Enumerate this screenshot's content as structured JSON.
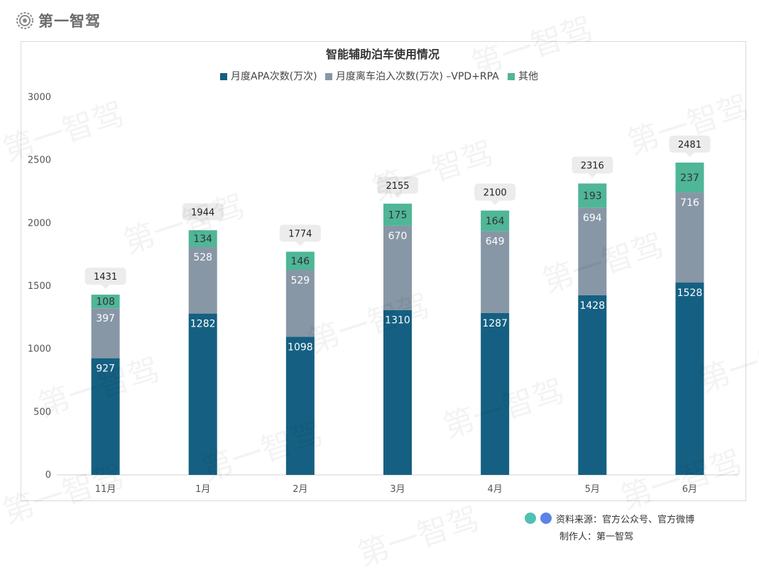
{
  "brand": {
    "name": "第一智驾",
    "icon": "gear-icon"
  },
  "chart_data": {
    "type": "bar",
    "stacked": true,
    "title": "智能辅助泊车使用情况",
    "categories": [
      "11月",
      "1月",
      "2月",
      "3月",
      "4月",
      "5月",
      "6月"
    ],
    "series": [
      {
        "name": "月度APA次数(万次)",
        "color": "#156082",
        "values": [
          927,
          1282,
          1098,
          1310,
          1287,
          1428,
          1528
        ]
      },
      {
        "name": "月度离车泊入次数(万次) –VPD+RPA",
        "color": "#8797a6",
        "values": [
          397,
          528,
          529,
          670,
          649,
          694,
          716
        ]
      },
      {
        "name": "其他",
        "color": "#4fb697",
        "values": [
          108,
          134,
          146,
          175,
          164,
          193,
          237
        ]
      }
    ],
    "totals": [
      1431,
      1944,
      1774,
      2155,
      2100,
      2316,
      2481
    ],
    "ylim": [
      0,
      3000
    ],
    "yticks": [
      0,
      500,
      1000,
      1500,
      2000,
      2500,
      3000
    ],
    "legend_position": "top",
    "grid": false
  },
  "footer": {
    "source": "资料来源：官方公众号、官方微博",
    "author": "制作人：第一智驾",
    "dot_colors": [
      "#4fc2b1",
      "#5b84e6"
    ]
  },
  "watermark": "第一智驾"
}
